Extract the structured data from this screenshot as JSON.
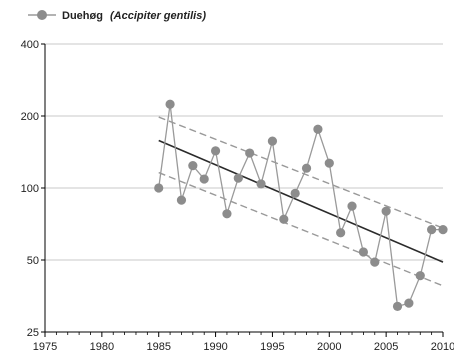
{
  "chart_data": {
    "type": "line",
    "legend": {
      "position": "top-left",
      "name": "Duehøg",
      "latin": "(Accipiter gentilis)"
    },
    "x": [
      1985,
      1986,
      1987,
      1988,
      1989,
      1990,
      1991,
      1992,
      1993,
      1994,
      1995,
      1996,
      1997,
      1998,
      1999,
      2000,
      2001,
      2002,
      2003,
      2004,
      2005,
      2006,
      2007,
      2008,
      2009,
      2010
    ],
    "series": [
      {
        "name": "Duehøg (Accipiter gentilis)",
        "values": [
          100,
          224,
          89,
          124,
          109,
          143,
          78,
          110,
          140,
          104,
          157,
          74,
          95,
          121,
          176,
          127,
          65,
          84,
          54,
          49,
          80,
          32,
          33,
          43,
          67,
          67
        ]
      }
    ],
    "trend": {
      "start": [
        1985,
        158
      ],
      "end": [
        2010,
        49
      ]
    },
    "confidence_upper": {
      "start": [
        1985,
        198
      ],
      "end": [
        2010,
        68
      ]
    },
    "confidence_lower": {
      "start": [
        1985,
        116
      ],
      "end": [
        2010,
        39
      ]
    },
    "xlim": [
      1975,
      2010
    ],
    "ylim": [
      25,
      400
    ],
    "yscale": "log",
    "xticks": [
      "1975",
      "1980",
      "1985",
      "1990",
      "1995",
      "2000",
      "2005",
      "2010"
    ],
    "yticks": [
      "25",
      "50",
      "100",
      "200",
      "400"
    ],
    "grid": true,
    "colors": {
      "series": "#9a9a9a",
      "marker": "#8c8c8c",
      "trend": "#2b2b2b",
      "confidence": "#999999",
      "grid": "#c8c8c8",
      "axis": "#000000"
    }
  }
}
